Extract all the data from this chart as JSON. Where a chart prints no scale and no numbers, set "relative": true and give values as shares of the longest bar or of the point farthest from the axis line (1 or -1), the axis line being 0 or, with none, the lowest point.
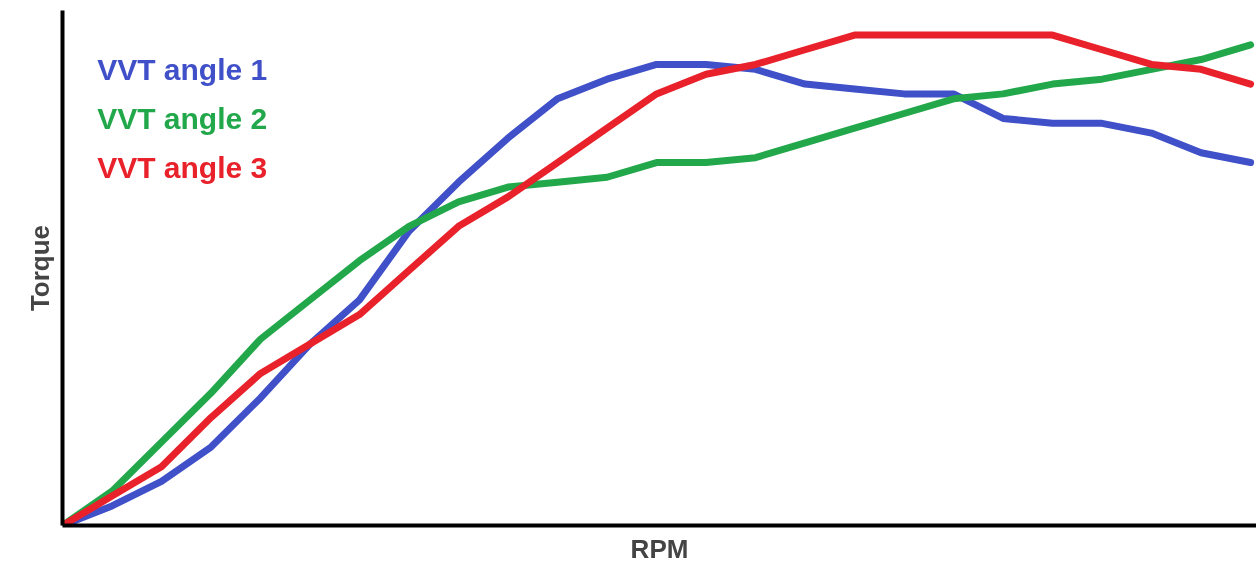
{
  "chart_data": {
    "type": "line",
    "relative": true,
    "xlabel": "RPM",
    "ylabel": "Torque",
    "legend": "top left",
    "marker": "none",
    "line_style": "solid",
    "categories": [
      null,
      null,
      null,
      null,
      null,
      null,
      null,
      null,
      null,
      null,
      null,
      null,
      null,
      null,
      null,
      null,
      null,
      null,
      null,
      null,
      null,
      null,
      null,
      null,
      null
    ],
    "series": [
      {
        "name": "VVT angle 1",
        "color": "#4050c8",
        "values": [
          0,
          0.04,
          0.09,
          0.16,
          0.26,
          0.37,
          0.46,
          0.6,
          0.7,
          0.79,
          0.87,
          0.91,
          0.94,
          0.94,
          0.93,
          0.9,
          0.89,
          0.88,
          0.88,
          0.83,
          0.82,
          0.82,
          0.8,
          0.76,
          0.74
        ]
      },
      {
        "name": "VVT angle 2",
        "color": "#22a84a",
        "values": [
          0,
          0.07,
          0.17,
          0.27,
          0.38,
          0.46,
          0.54,
          0.61,
          0.66,
          0.69,
          0.7,
          0.71,
          0.74,
          0.74,
          0.75,
          0.78,
          0.81,
          0.84,
          0.87,
          0.88,
          0.9,
          0.91,
          0.93,
          0.95,
          0.98
        ]
      },
      {
        "name": "VVT angle 3",
        "color": "#e8212a",
        "values": [
          0,
          0.06,
          0.12,
          0.22,
          0.31,
          0.37,
          0.43,
          0.52,
          0.61,
          0.67,
          0.74,
          0.81,
          0.88,
          0.92,
          0.94,
          0.97,
          1.0,
          1.0,
          1.0,
          1.0,
          1.0,
          0.97,
          0.94,
          0.93,
          0.9
        ]
      }
    ]
  }
}
